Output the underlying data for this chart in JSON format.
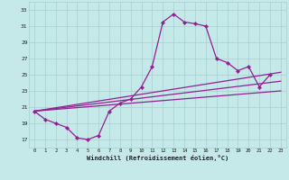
{
  "xlabel": "Windchill (Refroidissement éolien,°C)",
  "bg_color": "#c5e8e8",
  "grid_color": "#a8d0d0",
  "line_color": "#922092",
  "ylim": [
    16.0,
    34.0
  ],
  "xlim": [
    -0.5,
    23.5
  ],
  "yticks": [
    17,
    19,
    21,
    23,
    25,
    27,
    29,
    31,
    33
  ],
  "xticks": [
    0,
    1,
    2,
    3,
    4,
    5,
    6,
    7,
    8,
    9,
    10,
    11,
    12,
    13,
    14,
    15,
    16,
    17,
    18,
    19,
    20,
    21,
    22,
    23
  ],
  "main_x": [
    0,
    1,
    2,
    3,
    4,
    5,
    6,
    7,
    8,
    9,
    10,
    11,
    12,
    13,
    14,
    15,
    16,
    17,
    18,
    19,
    20,
    21,
    22
  ],
  "main_y": [
    20.5,
    19.5,
    19.0,
    18.5,
    17.2,
    17.0,
    17.5,
    20.5,
    21.5,
    22.0,
    23.5,
    26.0,
    31.5,
    32.5,
    31.5,
    31.3,
    31.0,
    27.0,
    26.5,
    25.5,
    26.0,
    23.5,
    25.0
  ],
  "line1_x": [
    0,
    23
  ],
  "line1_y": [
    20.5,
    25.3
  ],
  "line2_x": [
    0,
    23
  ],
  "line2_y": [
    20.5,
    24.2
  ],
  "line3_x": [
    0,
    23
  ],
  "line3_y": [
    20.5,
    23.0
  ],
  "lw": 0.9,
  "ms": 2.2
}
